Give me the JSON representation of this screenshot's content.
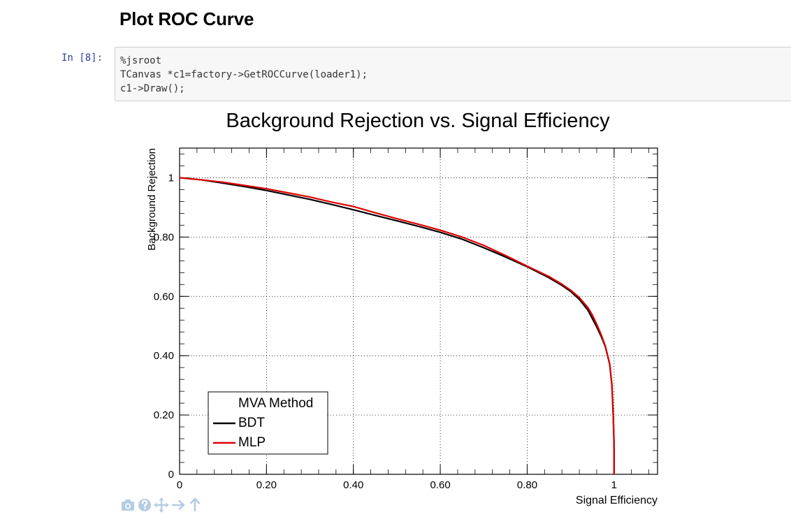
{
  "heading": "Plot ROC Curve",
  "cell": {
    "prompt": "In [8]:",
    "code_lines": [
      "%jsroot",
      "TCanvas *c1=factory->GetROCCurve(loader1);",
      "c1->Draw();"
    ]
  },
  "toolbar": {
    "icons": [
      "camera-icon",
      "question-icon",
      "move-icon",
      "arrow-right-icon",
      "arrow-up-icon"
    ],
    "color": "#b3cde3"
  },
  "chart_data": {
    "type": "line",
    "title": "Background Rejection vs. Signal Efficiency",
    "xlabel": "Signal Efficiency",
    "ylabel": "Background Rejection",
    "xlim": [
      0,
      1.1
    ],
    "ylim": [
      0,
      1.1
    ],
    "x_ticks": [
      0,
      0.2,
      0.4,
      0.6,
      0.8,
      1
    ],
    "x_tick_labels": [
      "0",
      "0.20",
      "0.40",
      "0.60",
      "0.80",
      "1"
    ],
    "y_ticks": [
      0,
      0.2,
      0.4,
      0.6,
      0.8,
      1
    ],
    "y_tick_labels": [
      "0",
      "0.20",
      "0.40",
      "0.60",
      "0.80",
      "1"
    ],
    "grid": true,
    "legend": {
      "title": "MVA Method",
      "placement": "bottom-left"
    },
    "series": [
      {
        "name": "BDT",
        "color": "#000000",
        "points": [
          [
            0,
            1.0
          ],
          [
            0.05,
            0.993
          ],
          [
            0.1,
            0.982
          ],
          [
            0.15,
            0.97
          ],
          [
            0.2,
            0.957
          ],
          [
            0.25,
            0.942
          ],
          [
            0.3,
            0.927
          ],
          [
            0.35,
            0.91
          ],
          [
            0.4,
            0.892
          ],
          [
            0.45,
            0.873
          ],
          [
            0.5,
            0.855
          ],
          [
            0.55,
            0.836
          ],
          [
            0.6,
            0.816
          ],
          [
            0.65,
            0.793
          ],
          [
            0.7,
            0.764
          ],
          [
            0.75,
            0.733
          ],
          [
            0.8,
            0.7
          ],
          [
            0.85,
            0.663
          ],
          [
            0.88,
            0.637
          ],
          [
            0.9,
            0.617
          ],
          [
            0.92,
            0.59
          ],
          [
            0.94,
            0.553
          ],
          [
            0.95,
            0.525
          ],
          [
            0.96,
            0.497
          ],
          [
            0.97,
            0.466
          ],
          [
            0.98,
            0.43
          ],
          [
            0.99,
            0.37
          ],
          [
            0.995,
            0.3
          ],
          [
            0.998,
            0.2
          ],
          [
            1.0,
            0.1
          ],
          [
            1.0,
            0.0
          ]
        ]
      },
      {
        "name": "MLP",
        "color": "#dd0000",
        "points": [
          [
            0,
            1.0
          ],
          [
            0.05,
            0.993
          ],
          [
            0.1,
            0.985
          ],
          [
            0.15,
            0.974
          ],
          [
            0.2,
            0.963
          ],
          [
            0.25,
            0.949
          ],
          [
            0.3,
            0.935
          ],
          [
            0.35,
            0.918
          ],
          [
            0.4,
            0.903
          ],
          [
            0.45,
            0.882
          ],
          [
            0.5,
            0.862
          ],
          [
            0.55,
            0.843
          ],
          [
            0.6,
            0.823
          ],
          [
            0.65,
            0.8
          ],
          [
            0.7,
            0.772
          ],
          [
            0.75,
            0.738
          ],
          [
            0.8,
            0.702
          ],
          [
            0.85,
            0.667
          ],
          [
            0.88,
            0.641
          ],
          [
            0.9,
            0.621
          ],
          [
            0.92,
            0.596
          ],
          [
            0.94,
            0.562
          ],
          [
            0.95,
            0.537
          ],
          [
            0.96,
            0.506
          ],
          [
            0.97,
            0.472
          ],
          [
            0.98,
            0.432
          ],
          [
            0.99,
            0.372
          ],
          [
            0.995,
            0.3
          ],
          [
            0.998,
            0.2
          ],
          [
            1.0,
            0.1
          ],
          [
            1.0,
            0.0
          ]
        ]
      }
    ]
  }
}
